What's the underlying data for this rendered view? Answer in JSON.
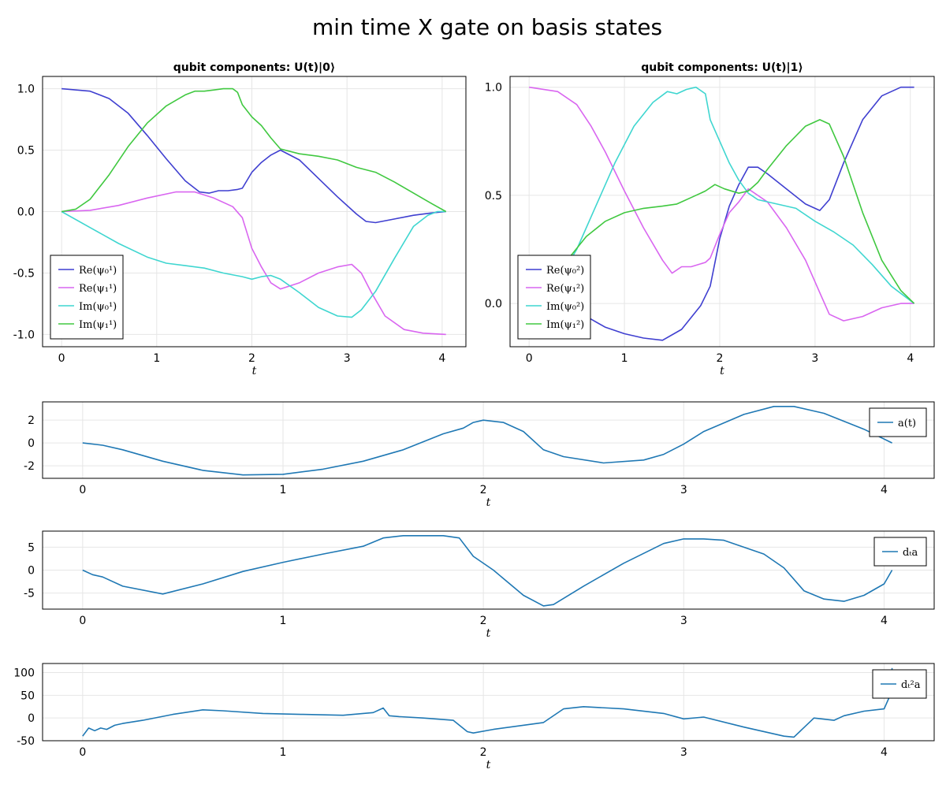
{
  "figure": {
    "title": "min time X gate on basis states"
  },
  "chart_data": [
    {
      "type": "line",
      "title": "qubit components: U(t)|0⟩",
      "xlabel": "t",
      "xlim": [
        -0.2,
        4.25
      ],
      "ylim": [
        -1.1,
        1.1
      ],
      "xticks": [
        0,
        1,
        2,
        3,
        4
      ],
      "xtick_labels": [
        "0",
        "1",
        "2",
        "3",
        "4"
      ],
      "yticks": [
        1.0,
        0.5,
        0.0,
        -0.5,
        -1.0
      ],
      "ytick_labels": [
        "1.0",
        "0.5",
        "0.0",
        "-0.5",
        "-1.0"
      ],
      "grid": true,
      "legend_position": "bottom-left",
      "series": [
        {
          "name": "Re(ψ₀¹)",
          "color": "#3f3fd0",
          "x": [
            0,
            0.3,
            0.5,
            0.7,
            0.9,
            1.1,
            1.3,
            1.45,
            1.55,
            1.65,
            1.75,
            1.85,
            1.9,
            2.0,
            2.1,
            2.2,
            2.3,
            2.5,
            2.7,
            2.9,
            3.1,
            3.2,
            3.3,
            3.5,
            3.7,
            3.9,
            4.04
          ],
          "values": [
            1.0,
            0.98,
            0.92,
            0.8,
            0.62,
            0.43,
            0.25,
            0.16,
            0.15,
            0.17,
            0.17,
            0.18,
            0.19,
            0.32,
            0.4,
            0.46,
            0.5,
            0.42,
            0.27,
            0.12,
            -0.02,
            -0.08,
            -0.09,
            -0.06,
            -0.03,
            -0.01,
            0.0
          ]
        },
        {
          "name": "Re(ψ₁¹)",
          "color": "#d966f0",
          "x": [
            0,
            0.3,
            0.6,
            0.9,
            1.2,
            1.4,
            1.6,
            1.8,
            1.9,
            2.0,
            2.1,
            2.2,
            2.3,
            2.5,
            2.7,
            2.9,
            3.05,
            3.15,
            3.25,
            3.4,
            3.6,
            3.8,
            4.04
          ],
          "values": [
            0.0,
            0.01,
            0.05,
            0.11,
            0.16,
            0.16,
            0.11,
            0.04,
            -0.05,
            -0.3,
            -0.45,
            -0.58,
            -0.63,
            -0.58,
            -0.5,
            -0.45,
            -0.43,
            -0.5,
            -0.65,
            -0.85,
            -0.96,
            -0.99,
            -1.0
          ]
        },
        {
          "name": "Im(ψ₀¹)",
          "color": "#3fd6d0",
          "x": [
            0,
            0.3,
            0.6,
            0.9,
            1.1,
            1.3,
            1.5,
            1.7,
            1.9,
            2.0,
            2.1,
            2.2,
            2.3,
            2.5,
            2.7,
            2.9,
            3.05,
            3.15,
            3.3,
            3.5,
            3.7,
            3.85,
            3.95,
            4.04
          ],
          "values": [
            0.0,
            -0.13,
            -0.26,
            -0.37,
            -0.42,
            -0.44,
            -0.46,
            -0.5,
            -0.53,
            -0.55,
            -0.53,
            -0.52,
            -0.55,
            -0.66,
            -0.78,
            -0.85,
            -0.86,
            -0.8,
            -0.65,
            -0.38,
            -0.12,
            -0.03,
            0.0,
            0.0
          ]
        },
        {
          "name": "Im(ψ₁¹)",
          "color": "#40c840",
          "x": [
            0,
            0.15,
            0.3,
            0.5,
            0.7,
            0.9,
            1.1,
            1.3,
            1.4,
            1.5,
            1.6,
            1.7,
            1.8,
            1.85,
            1.9,
            2.0,
            2.1,
            2.2,
            2.3,
            2.5,
            2.7,
            2.9,
            3.1,
            3.3,
            3.5,
            3.7,
            3.9,
            4.04
          ],
          "values": [
            0.0,
            0.02,
            0.1,
            0.3,
            0.53,
            0.72,
            0.86,
            0.95,
            0.98,
            0.98,
            0.99,
            1.0,
            1.0,
            0.97,
            0.87,
            0.77,
            0.7,
            0.6,
            0.51,
            0.47,
            0.45,
            0.42,
            0.36,
            0.32,
            0.24,
            0.15,
            0.06,
            0.0
          ]
        }
      ]
    },
    {
      "type": "line",
      "title": "qubit components: U(t)|1⟩",
      "xlabel": "t",
      "xlim": [
        -0.2,
        4.25
      ],
      "ylim": [
        -0.2,
        1.05
      ],
      "xticks": [
        0,
        1,
        2,
        3,
        4
      ],
      "xtick_labels": [
        "0",
        "1",
        "2",
        "3",
        "4"
      ],
      "yticks": [
        1.0,
        0.5,
        0.0
      ],
      "ytick_labels": [
        "1.0",
        "0.5",
        "0.0"
      ],
      "grid": true,
      "legend_position": "bottom-left",
      "series": [
        {
          "name": "Re(ψ₀²)",
          "color": "#3f3fd0",
          "x": [
            0,
            0.2,
            0.4,
            0.6,
            0.8,
            1.0,
            1.2,
            1.4,
            1.6,
            1.8,
            1.9,
            2.0,
            2.1,
            2.2,
            2.3,
            2.4,
            2.5,
            2.7,
            2.9,
            3.05,
            3.15,
            3.3,
            3.5,
            3.7,
            3.9,
            4.04
          ],
          "values": [
            0.0,
            -0.01,
            -0.03,
            -0.06,
            -0.11,
            -0.14,
            -0.16,
            -0.17,
            -0.12,
            -0.01,
            0.08,
            0.3,
            0.45,
            0.55,
            0.63,
            0.63,
            0.6,
            0.53,
            0.46,
            0.43,
            0.48,
            0.65,
            0.85,
            0.96,
            1.0,
            1.0
          ]
        },
        {
          "name": "Re(ψ₁²)",
          "color": "#d966f0",
          "x": [
            0,
            0.3,
            0.5,
            0.65,
            0.8,
            1.0,
            1.2,
            1.4,
            1.5,
            1.6,
            1.7,
            1.85,
            1.9,
            2.0,
            2.1,
            2.2,
            2.3,
            2.5,
            2.7,
            2.9,
            3.05,
            3.15,
            3.3,
            3.5,
            3.7,
            3.9,
            4.04
          ],
          "values": [
            1.0,
            0.98,
            0.92,
            0.82,
            0.7,
            0.52,
            0.35,
            0.2,
            0.14,
            0.17,
            0.17,
            0.19,
            0.21,
            0.32,
            0.42,
            0.47,
            0.53,
            0.47,
            0.35,
            0.2,
            0.05,
            -0.05,
            -0.08,
            -0.06,
            -0.02,
            0.0,
            0.0
          ]
        },
        {
          "name": "Im(ψ₀²)",
          "color": "#3fd6d0",
          "x": [
            0,
            0.3,
            0.5,
            0.7,
            0.9,
            1.1,
            1.3,
            1.45,
            1.55,
            1.65,
            1.75,
            1.85,
            1.9,
            2.0,
            2.1,
            2.2,
            2.3,
            2.4,
            2.6,
            2.8,
            3.0,
            3.2,
            3.4,
            3.6,
            3.8,
            4.04
          ],
          "values": [
            0.0,
            0.1,
            0.25,
            0.45,
            0.65,
            0.82,
            0.93,
            0.98,
            0.97,
            0.99,
            1.0,
            0.97,
            0.85,
            0.75,
            0.65,
            0.57,
            0.51,
            0.48,
            0.46,
            0.44,
            0.38,
            0.33,
            0.27,
            0.18,
            0.08,
            0.0
          ]
        },
        {
          "name": "Im(ψ₁²)",
          "color": "#40c840",
          "x": [
            0,
            0.2,
            0.4,
            0.6,
            0.8,
            1.0,
            1.2,
            1.4,
            1.55,
            1.7,
            1.85,
            1.95,
            2.05,
            2.2,
            2.3,
            2.4,
            2.5,
            2.7,
            2.9,
            3.05,
            3.15,
            3.3,
            3.5,
            3.7,
            3.9,
            4.04
          ],
          "values": [
            0.0,
            0.08,
            0.2,
            0.31,
            0.38,
            0.42,
            0.44,
            0.45,
            0.46,
            0.49,
            0.52,
            0.55,
            0.53,
            0.51,
            0.52,
            0.56,
            0.62,
            0.73,
            0.82,
            0.85,
            0.83,
            0.68,
            0.42,
            0.2,
            0.06,
            0.0
          ]
        }
      ]
    },
    {
      "type": "line",
      "title": "",
      "xlabel": "t",
      "xlim": [
        -0.2,
        4.25
      ],
      "ylim": [
        -3.1,
        3.6
      ],
      "xticks": [
        0,
        1,
        2,
        3,
        4
      ],
      "xtick_labels": [
        "0",
        "1",
        "2",
        "3",
        "4"
      ],
      "yticks": [
        2,
        0,
        -2
      ],
      "ytick_labels": [
        "2",
        "0",
        "-2"
      ],
      "grid": true,
      "legend_position": "right",
      "series": [
        {
          "name": "a(t)",
          "color": "#1f78b4",
          "x": [
            0,
            0.1,
            0.2,
            0.4,
            0.6,
            0.8,
            1.0,
            1.2,
            1.4,
            1.6,
            1.8,
            1.9,
            1.95,
            2.0,
            2.1,
            2.2,
            2.3,
            2.4,
            2.6,
            2.8,
            2.9,
            3.0,
            3.1,
            3.3,
            3.45,
            3.55,
            3.7,
            3.9,
            4.04
          ],
          "values": [
            0.0,
            -0.2,
            -0.6,
            -1.6,
            -2.4,
            -2.8,
            -2.75,
            -2.3,
            -1.6,
            -0.6,
            0.8,
            1.3,
            1.8,
            2.0,
            1.8,
            1.0,
            -0.6,
            -1.2,
            -1.75,
            -1.5,
            -1.0,
            -0.1,
            1.0,
            2.5,
            3.2,
            3.2,
            2.6,
            1.2,
            0.0
          ]
        }
      ]
    },
    {
      "type": "line",
      "title": "",
      "xlabel": "t",
      "xlim": [
        -0.2,
        4.25
      ],
      "ylim": [
        -8.5,
        8.5
      ],
      "xticks": [
        0,
        1,
        2,
        3,
        4
      ],
      "xtick_labels": [
        "0",
        "1",
        "2",
        "3",
        "4"
      ],
      "yticks": [
        5,
        0,
        -5
      ],
      "ytick_labels": [
        "5",
        "0",
        "-5"
      ],
      "grid": true,
      "legend_position": "right",
      "series": [
        {
          "name": "dₜa",
          "color": "#1f78b4",
          "x": [
            0,
            0.05,
            0.1,
            0.2,
            0.4,
            0.6,
            0.8,
            1.0,
            1.2,
            1.4,
            1.5,
            1.6,
            1.8,
            1.88,
            1.95,
            2.05,
            2.2,
            2.3,
            2.35,
            2.5,
            2.7,
            2.9,
            3.0,
            3.1,
            3.2,
            3.4,
            3.5,
            3.6,
            3.7,
            3.8,
            3.9,
            4.0,
            4.04
          ],
          "values": [
            0.0,
            -1.0,
            -1.5,
            -3.5,
            -5.2,
            -3.0,
            -0.3,
            1.7,
            3.5,
            5.2,
            7.0,
            7.5,
            7.5,
            7.0,
            3.0,
            0.0,
            -5.5,
            -7.8,
            -7.5,
            -3.5,
            1.5,
            5.8,
            6.8,
            6.8,
            6.5,
            3.5,
            0.5,
            -4.5,
            -6.3,
            -6.8,
            -5.5,
            -3.0,
            0.0
          ]
        }
      ]
    },
    {
      "type": "line",
      "title": "",
      "xlabel": "t",
      "xlim": [
        -0.2,
        4.25
      ],
      "ylim": [
        -50,
        120
      ],
      "xticks": [
        0,
        1,
        2,
        3,
        4
      ],
      "xtick_labels": [
        "0",
        "1",
        "2",
        "3",
        "4"
      ],
      "yticks": [
        100,
        50,
        0,
        -50
      ],
      "ytick_labels": [
        "100",
        "50",
        "0",
        "-50"
      ],
      "grid": true,
      "legend_position": "right",
      "series": [
        {
          "name": "dₜ²a",
          "color": "#1f78b4",
          "x": [
            0,
            0.03,
            0.06,
            0.09,
            0.12,
            0.16,
            0.2,
            0.3,
            0.45,
            0.6,
            0.7,
            0.9,
            1.1,
            1.3,
            1.45,
            1.5,
            1.53,
            1.58,
            1.7,
            1.85,
            1.92,
            1.95,
            2.05,
            2.3,
            2.4,
            2.5,
            2.7,
            2.9,
            3.0,
            3.1,
            3.3,
            3.5,
            3.55,
            3.65,
            3.75,
            3.8,
            3.9,
            4.0,
            4.03,
            4.04
          ],
          "values": [
            -40,
            -22,
            -28,
            -22,
            -25,
            -16,
            -12,
            -5,
            8,
            18,
            16,
            10,
            8,
            6,
            12,
            22,
            5,
            3,
            0,
            -5,
            -30,
            -33,
            -25,
            -10,
            20,
            25,
            20,
            10,
            -2,
            2,
            -20,
            -40,
            -42,
            0,
            -5,
            5,
            15,
            20,
            50,
            110
          ]
        }
      ]
    }
  ]
}
